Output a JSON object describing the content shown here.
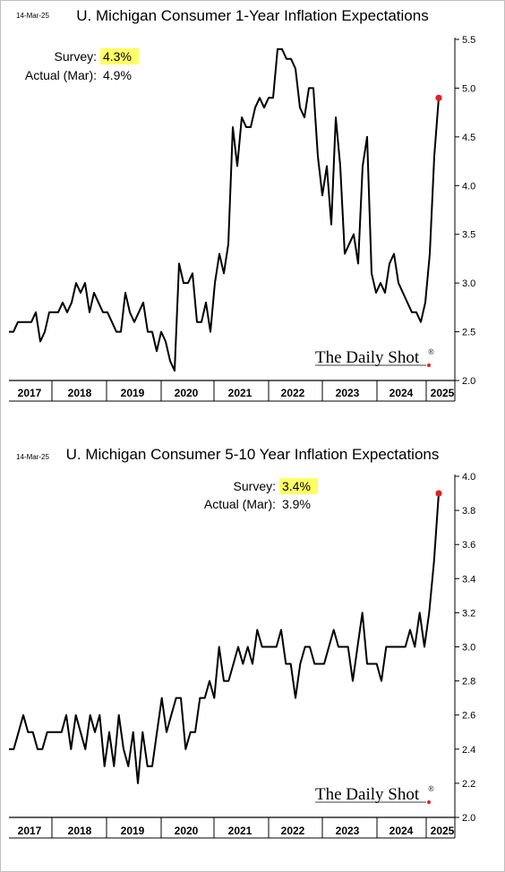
{
  "chart_data": [
    {
      "type": "line",
      "title": "U. Michigan Consumer 1-Year Inflation Expectations",
      "date_label": "14-Mar-25",
      "annotations": {
        "survey_label": "Survey:",
        "survey_value": "4.3%",
        "actual_label": "Actual (Mar):",
        "actual_value": "4.9%"
      },
      "brand": "The Daily Shot",
      "brand_mark": "®",
      "ylim": [
        2.0,
        5.5
      ],
      "y_ticks": [
        "2.0",
        "2.5",
        "3.0",
        "3.5",
        "4.0",
        "4.5",
        "5.0",
        "5.5"
      ],
      "x_ticks": [
        "2017",
        "2018",
        "2019",
        "2020",
        "2021",
        "2022",
        "2023",
        "2024",
        "2025"
      ],
      "x_start": 2017.0,
      "x_step": 0.08333,
      "values": [
        2.5,
        2.5,
        2.6,
        2.6,
        2.6,
        2.6,
        2.7,
        2.4,
        2.5,
        2.7,
        2.7,
        2.7,
        2.8,
        2.7,
        2.8,
        3.0,
        2.9,
        3.0,
        2.7,
        2.9,
        2.8,
        2.7,
        2.7,
        2.6,
        2.5,
        2.5,
        2.9,
        2.7,
        2.6,
        2.7,
        2.8,
        2.5,
        2.5,
        2.3,
        2.5,
        2.4,
        2.2,
        2.1,
        3.2,
        3.0,
        3.0,
        3.1,
        2.6,
        2.6,
        2.8,
        2.5,
        3.0,
        3.3,
        3.1,
        3.4,
        4.6,
        4.2,
        4.7,
        4.6,
        4.6,
        4.8,
        4.9,
        4.8,
        4.9,
        4.9,
        5.4,
        5.4,
        5.3,
        5.3,
        5.2,
        4.8,
        4.7,
        5.0,
        5.0,
        4.3,
        3.9,
        4.2,
        3.6,
        4.7,
        4.2,
        3.3,
        3.4,
        3.5,
        3.2,
        4.2,
        4.5,
        3.1,
        2.9,
        3.0,
        2.9,
        3.2,
        3.3,
        3.0,
        2.9,
        2.8,
        2.7,
        2.7,
        2.6,
        2.8,
        3.3,
        4.3,
        4.9
      ],
      "highlight": {
        "value": 4.9
      }
    },
    {
      "type": "line",
      "title": "U. Michigan Consumer 5-10 Year Inflation Expectations",
      "date_label": "14-Mar-25",
      "annotations": {
        "survey_label": "Survey:",
        "survey_value": "3.4%",
        "actual_label": "Actual (Mar):",
        "actual_value": "3.9%"
      },
      "brand": "The Daily Shot",
      "brand_mark": "®",
      "ylim": [
        2.0,
        4.0
      ],
      "y_ticks": [
        "2.0",
        "2.2",
        "2.4",
        "2.6",
        "2.8",
        "3.0",
        "3.2",
        "3.4",
        "3.6",
        "3.8",
        "4.0"
      ],
      "x_ticks": [
        "2017",
        "2018",
        "2019",
        "2020",
        "2021",
        "2022",
        "2023",
        "2024",
        "2025"
      ],
      "x_start": 2017.0,
      "x_step": 0.08333,
      "values": [
        2.4,
        2.4,
        2.5,
        2.6,
        2.5,
        2.5,
        2.4,
        2.4,
        2.5,
        2.5,
        2.5,
        2.5,
        2.6,
        2.4,
        2.6,
        2.5,
        2.4,
        2.6,
        2.5,
        2.6,
        2.3,
        2.5,
        2.3,
        2.6,
        2.4,
        2.3,
        2.5,
        2.2,
        2.5,
        2.3,
        2.3,
        2.5,
        2.7,
        2.5,
        2.6,
        2.7,
        2.7,
        2.4,
        2.5,
        2.5,
        2.7,
        2.7,
        2.8,
        2.7,
        3.0,
        2.8,
        2.8,
        2.9,
        3.0,
        2.9,
        3.0,
        2.9,
        3.1,
        3.0,
        3.0,
        3.0,
        3.0,
        3.1,
        2.9,
        2.9,
        2.7,
        2.9,
        3.0,
        3.0,
        2.9,
        2.9,
        2.9,
        3.0,
        3.1,
        3.0,
        3.0,
        3.0,
        2.8,
        3.0,
        3.2,
        2.9,
        2.9,
        2.9,
        2.8,
        3.0,
        3.0,
        3.0,
        3.0,
        3.0,
        3.1,
        3.0,
        3.2,
        3.0,
        3.2,
        3.5,
        3.9
      ],
      "highlight": {
        "value": 3.9
      }
    }
  ]
}
